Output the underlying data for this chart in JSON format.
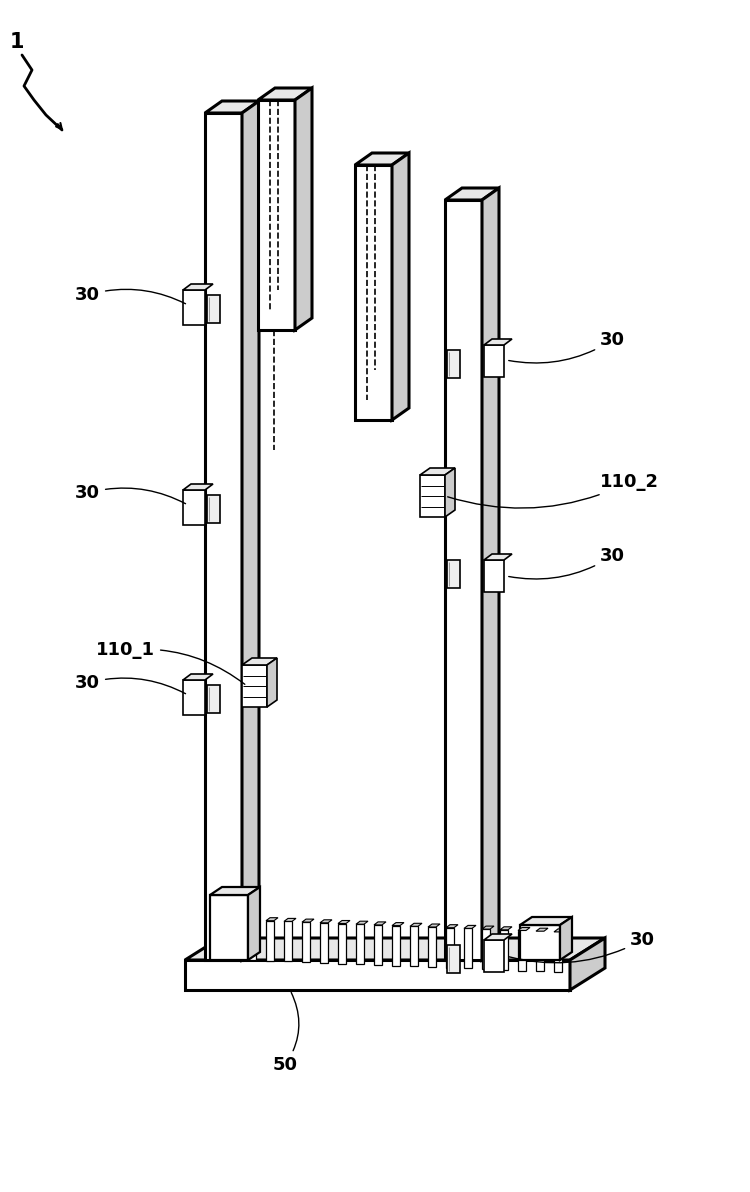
{
  "background": "#ffffff",
  "lc": "#000000",
  "lw_main": 2.2,
  "lw_thin": 1.2,
  "lw_med": 1.6,
  "fig_w": 7.5,
  "fig_h": 11.92,
  "label_1": "1",
  "label_30": "30",
  "label_50": "50",
  "label_110_1": "110_1",
  "label_110_2": "110_2",
  "fc_white": "#ffffff",
  "fc_light": "#e8e8e8",
  "fc_mid": "#cccccc",
  "fc_dark": "#aaaaaa"
}
